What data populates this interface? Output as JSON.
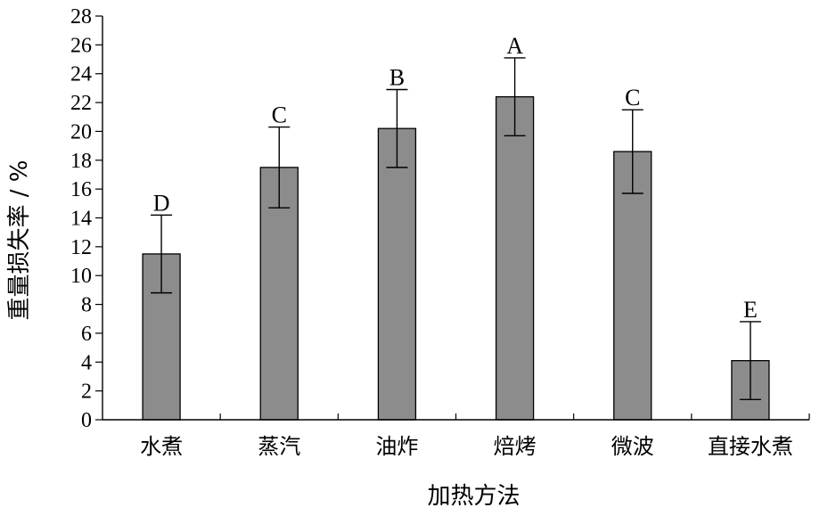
{
  "chart_data": {
    "type": "bar",
    "categories": [
      "水煮",
      "蒸汽",
      "油炸",
      "焙烤",
      "微波",
      "直接水煮"
    ],
    "values": [
      11.5,
      17.5,
      20.2,
      22.4,
      18.6,
      4.1
    ],
    "errors": [
      2.7,
      2.8,
      2.7,
      2.7,
      2.9,
      2.7
    ],
    "significance": [
      "D",
      "C",
      "B",
      "A",
      "C",
      "E"
    ],
    "xlabel": "加热方法",
    "ylabel": "重量损失率 / %",
    "ylim": [
      0,
      28
    ],
    "yticks": [
      0,
      2,
      4,
      6,
      8,
      10,
      12,
      14,
      16,
      18,
      20,
      22,
      24,
      26,
      28
    ],
    "bar_color": "#8c8c8c",
    "grid": false
  }
}
